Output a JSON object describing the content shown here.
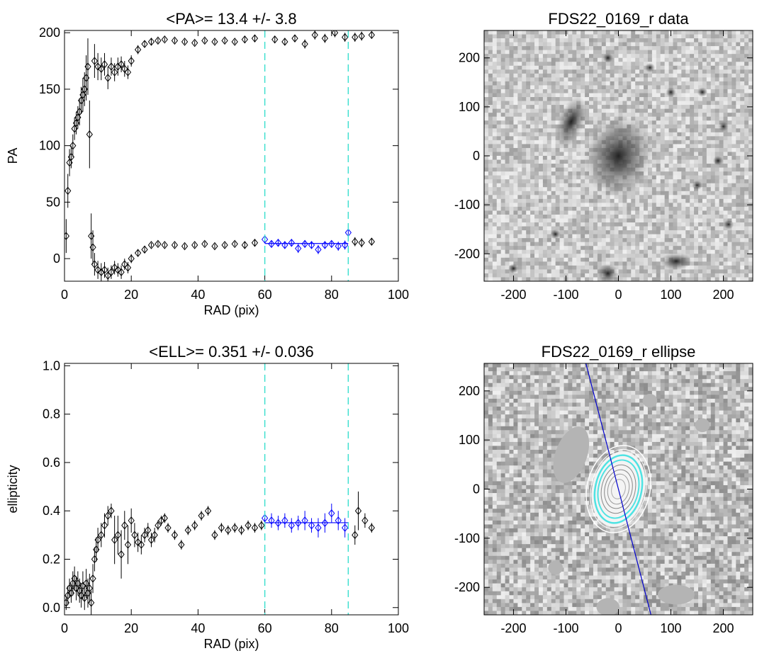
{
  "chart_data": [
    {
      "type": "scatter",
      "title": "<PA>=  13.4 +/-   3.8",
      "xlabel": "RAD (pix)",
      "ylabel": "PA",
      "xlim": [
        0,
        100
      ],
      "ylim": [
        -20,
        202
      ],
      "xticks": [
        0,
        20,
        40,
        60,
        80,
        100
      ],
      "yticks": [
        0,
        50,
        100,
        150,
        200
      ],
      "series": [
        {
          "color": "#000000",
          "x": [
            0.5,
            1,
            1.5,
            2,
            2.5,
            3,
            3.5,
            4,
            4.5,
            5,
            5.5,
            6,
            6.5,
            7,
            7.5,
            8,
            8.5,
            9,
            10,
            11,
            12,
            13,
            14,
            15,
            16,
            17,
            18,
            19,
            20,
            22,
            24,
            26,
            28,
            30,
            33,
            36,
            39,
            42,
            45,
            48,
            51,
            54,
            57,
            87,
            89,
            92
          ],
          "values": [
            20,
            60,
            85,
            90,
            100,
            115,
            120,
            125,
            130,
            140,
            145,
            150,
            160,
            170,
            110,
            20,
            10,
            -5,
            -10,
            -12,
            -10,
            -15,
            -12,
            -8,
            -10,
            -12,
            -5,
            -8,
            0,
            5,
            8,
            12,
            13,
            12,
            12,
            11,
            12,
            13,
            11,
            12,
            13,
            12,
            14,
            15,
            14,
            15
          ],
          "errors": [
            15,
            15,
            12,
            10,
            10,
            10,
            10,
            10,
            12,
            12,
            15,
            15,
            20,
            25,
            30,
            20,
            15,
            10,
            8,
            8,
            7,
            7,
            6,
            6,
            6,
            6,
            5,
            5,
            4,
            3,
            3,
            2,
            2,
            2,
            2,
            2,
            2,
            2,
            2,
            2,
            2,
            3,
            3,
            4,
            4,
            3
          ]
        },
        {
          "color": "#000000",
          "x": [
            9,
            10,
            11,
            12,
            13,
            14,
            15,
            16,
            17,
            18,
            19,
            20,
            22,
            24,
            26,
            28,
            30,
            33,
            36,
            39,
            42,
            45,
            48,
            51,
            54,
            57,
            63,
            66,
            69,
            72,
            75,
            78,
            81,
            84,
            87,
            89,
            92
          ],
          "values": [
            175,
            170,
            168,
            172,
            160,
            170,
            165,
            170,
            172,
            168,
            165,
            175,
            185,
            190,
            192,
            193,
            194,
            193,
            192,
            191,
            193,
            192,
            193,
            192,
            194,
            195,
            194,
            192,
            195,
            190,
            198,
            195,
            200,
            196,
            196,
            197,
            198
          ],
          "errors": [
            15,
            12,
            10,
            10,
            10,
            8,
            8,
            8,
            7,
            7,
            6,
            5,
            4,
            3,
            3,
            2,
            2,
            2,
            2,
            2,
            2,
            2,
            2,
            2,
            3,
            3,
            3,
            3,
            3,
            4,
            4,
            4,
            4,
            4,
            4,
            4,
            3
          ]
        },
        {
          "color": "#0000ff",
          "x": [
            60,
            62,
            64,
            66,
            68,
            70,
            72,
            74,
            76,
            78,
            80,
            82,
            84,
            85
          ],
          "values": [
            17,
            13,
            14,
            12,
            14,
            9,
            13,
            12,
            8,
            12,
            13,
            11,
            12,
            23
          ],
          "errors": [
            3,
            3,
            3,
            3,
            3,
            4,
            3,
            3,
            4,
            3,
            3,
            4,
            4,
            3
          ]
        }
      ],
      "fit": {
        "color": "#0000ff",
        "x": [
          60,
          85
        ],
        "value": 13.4
      },
      "vlines": {
        "color": "#40e0d0",
        "x": [
          60,
          85
        ]
      }
    },
    {
      "type": "image",
      "title": "FDS22_0169_r data",
      "xlim": [
        -256,
        256
      ],
      "ylim": [
        -256,
        256
      ],
      "xticks": [
        -200,
        -100,
        0,
        100,
        200
      ],
      "yticks": [
        -200,
        -100,
        0,
        100,
        200
      ]
    },
    {
      "type": "scatter",
      "title": "<ELL>= 0.351 +/-  0.036",
      "xlabel": "RAD (pix)",
      "ylabel": "ellipticity",
      "xlim": [
        0,
        100
      ],
      "ylim": [
        -0.03,
        1.01
      ],
      "xticks": [
        0,
        20,
        40,
        60,
        80,
        100
      ],
      "yticks": [
        {
          "value": 0,
          "label": "0.0"
        },
        0.2,
        0.4,
        0.6,
        0.8,
        {
          "value": 1,
          "label": "1.0"
        }
      ],
      "series": [
        {
          "color": "#000000",
          "x": [
            0.5,
            1,
            1.5,
            2,
            2.5,
            3,
            3.5,
            4,
            4.5,
            5,
            5.5,
            6,
            6.5,
            7,
            7.5,
            8,
            8.5,
            9,
            9.5,
            10,
            11,
            12,
            13,
            14,
            15,
            16,
            17,
            18,
            19,
            20,
            21,
            22,
            23,
            24,
            25,
            26,
            27,
            28,
            29,
            30,
            31,
            33,
            35,
            37,
            39,
            41,
            43,
            45,
            47,
            49,
            51,
            53,
            55,
            57,
            59,
            87,
            88,
            90,
            92
          ],
          "values": [
            0.02,
            0.05,
            0.08,
            0.06,
            0.1,
            0.12,
            0.08,
            0.1,
            0.07,
            0.05,
            0.09,
            0.04,
            0.1,
            0.06,
            0.08,
            0.02,
            0.12,
            0.2,
            0.24,
            0.28,
            0.3,
            0.34,
            0.38,
            0.4,
            0.28,
            0.3,
            0.22,
            0.34,
            0.26,
            0.36,
            0.3,
            0.27,
            0.26,
            0.3,
            0.32,
            0.28,
            0.3,
            0.34,
            0.36,
            0.37,
            0.33,
            0.3,
            0.26,
            0.32,
            0.34,
            0.38,
            0.4,
            0.3,
            0.33,
            0.32,
            0.33,
            0.32,
            0.34,
            0.33,
            0.34,
            0.3,
            0.4,
            0.36,
            0.33
          ],
          "errors": [
            0.03,
            0.04,
            0.04,
            0.04,
            0.05,
            0.05,
            0.05,
            0.05,
            0.05,
            0.05,
            0.06,
            0.05,
            0.06,
            0.06,
            0.06,
            0.05,
            0.06,
            0.05,
            0.05,
            0.05,
            0.05,
            0.05,
            0.04,
            0.03,
            0.1,
            0.08,
            0.1,
            0.06,
            0.08,
            0.05,
            0.05,
            0.04,
            0.04,
            0.03,
            0.03,
            0.03,
            0.03,
            0.02,
            0.02,
            0.02,
            0.02,
            0.02,
            0.02,
            0.02,
            0.02,
            0.02,
            0.02,
            0.02,
            0.02,
            0.02,
            0.02,
            0.02,
            0.02,
            0.02,
            0.02,
            0.04,
            0.08,
            0.03,
            0.02
          ]
        },
        {
          "color": "#0000ff",
          "x": [
            60,
            62,
            64,
            66,
            68,
            70,
            72,
            74,
            76,
            78,
            80,
            82,
            84
          ],
          "values": [
            0.37,
            0.36,
            0.35,
            0.36,
            0.34,
            0.35,
            0.36,
            0.34,
            0.33,
            0.35,
            0.39,
            0.36,
            0.33
          ],
          "errors": [
            0.02,
            0.03,
            0.03,
            0.03,
            0.03,
            0.03,
            0.04,
            0.03,
            0.04,
            0.04,
            0.04,
            0.04,
            0.04
          ]
        }
      ],
      "fit": {
        "color": "#0000ff",
        "x": [
          60,
          85
        ],
        "value": 0.351
      },
      "vlines": {
        "color": "#40e0d0",
        "x": [
          60,
          85
        ]
      }
    },
    {
      "type": "image",
      "title": "FDS22_0169_r ellipse",
      "xlim": [
        -256,
        256
      ],
      "ylim": [
        -256,
        256
      ],
      "xticks": [
        -200,
        -100,
        0,
        100,
        200
      ],
      "yticks": [
        -200,
        -100,
        0,
        100,
        200
      ]
    }
  ]
}
